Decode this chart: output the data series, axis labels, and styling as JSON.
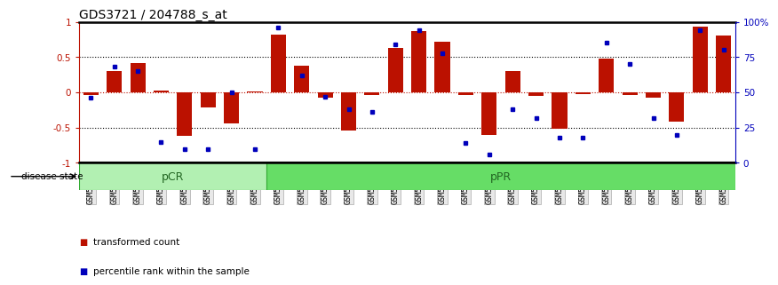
{
  "title": "GDS3721 / 204788_s_at",
  "samples": [
    "GSM559062",
    "GSM559063",
    "GSM559064",
    "GSM559065",
    "GSM559066",
    "GSM559067",
    "GSM559068",
    "GSM559069",
    "GSM559042",
    "GSM559043",
    "GSM559044",
    "GSM559045",
    "GSM559046",
    "GSM559047",
    "GSM559048",
    "GSM559049",
    "GSM559050",
    "GSM559051",
    "GSM559052",
    "GSM559053",
    "GSM559054",
    "GSM559055",
    "GSM559056",
    "GSM559057",
    "GSM559058",
    "GSM559059",
    "GSM559060",
    "GSM559061"
  ],
  "bar_values": [
    -0.04,
    0.3,
    0.42,
    0.02,
    -0.62,
    -0.22,
    -0.44,
    0.01,
    0.82,
    0.38,
    -0.08,
    -0.54,
    -0.04,
    0.63,
    0.87,
    0.72,
    -0.04,
    -0.6,
    0.3,
    -0.05,
    -0.52,
    -0.02,
    0.48,
    -0.04,
    -0.08,
    -0.42,
    0.93,
    0.8
  ],
  "dot_values_pct": [
    46,
    68,
    65,
    15,
    10,
    10,
    50,
    10,
    96,
    62,
    47,
    38,
    36,
    84,
    94,
    78,
    14,
    6,
    38,
    32,
    18,
    18,
    85,
    70,
    32,
    20,
    94,
    80
  ],
  "pcr_count": 8,
  "ppr_count": 20,
  "group1_label": "pCR",
  "group2_label": "pPR",
  "bar_color": "#bb1100",
  "dot_color": "#0000bb",
  "pcr_facecolor": "#b2f0b2",
  "ppr_facecolor": "#66dd66",
  "ylim": [
    -1.0,
    1.0
  ],
  "left_yticks": [
    -1,
    -0.5,
    0,
    0.5,
    1
  ],
  "right_yticks": [
    0,
    25,
    50,
    75,
    100
  ],
  "right_yticklabels": [
    "0",
    "25",
    "50",
    "75",
    "100%"
  ],
  "hlines_dotted": [
    -0.5,
    0.5
  ],
  "hline_zero": 0.0,
  "title_fontsize": 10,
  "background": "#ffffff",
  "tick_area_bg": "#e8e8e8"
}
